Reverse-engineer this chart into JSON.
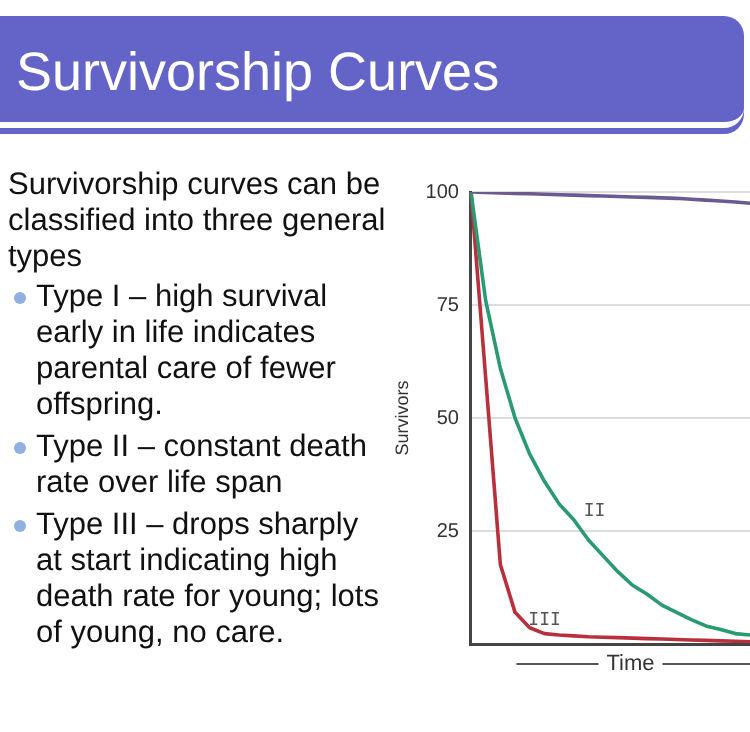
{
  "chart_data": {
    "type": "line",
    "title": "Survivorship Curves",
    "ylabel": "Survivors",
    "xlabel": "Time",
    "annotations": [
      "Survivorship curves can be classified into three general types",
      "Type I – high survival early in life indicates parental care of fewer offspring.",
      "Type II – constant death rate over life span",
      "Type III – drops sharply at start indicating high death rate for young; lots of young, no care."
    ],
    "categories": [
      null,
      null,
      null,
      null,
      null,
      null,
      null,
      null,
      null,
      null,
      null,
      null,
      null,
      null,
      null,
      null,
      null,
      null,
      null,
      null
    ],
    "series": [
      {
        "color": "#6a5a90",
        "values": [
          100,
          99.9,
          99.8,
          99.7,
          99.6,
          99.5,
          99.4,
          99.3,
          99.2,
          99.1,
          99,
          98.9,
          98.8,
          98.7,
          98.6,
          98.4,
          98.2,
          98,
          97.8,
          97.5
        ]
      },
      {
        "name": "II",
        "color": "#2a9a70",
        "values": [
          100,
          76,
          61,
          50,
          42,
          36,
          31,
          27.5,
          23,
          19.5,
          16,
          13,
          11,
          8.6,
          7,
          5.4,
          4,
          3.2,
          2.3,
          2
        ]
      },
      {
        "name": "III",
        "color": "#b8303c",
        "values": [
          100,
          59,
          17.6,
          7,
          3.6,
          2.3,
          2,
          1.8,
          1.6,
          1.5,
          1.4,
          1.3,
          1.2,
          1.1,
          1,
          0.9,
          0.8,
          0.7,
          0.6,
          0.5
        ]
      }
    ],
    "ylim": [
      0,
      100
    ],
    "yticks": [
      25,
      50,
      75,
      100
    ],
    "grid": "y",
    "tick_labels": "y",
    "marker": "none",
    "line_style": "solid",
    "legend": false
  }
}
